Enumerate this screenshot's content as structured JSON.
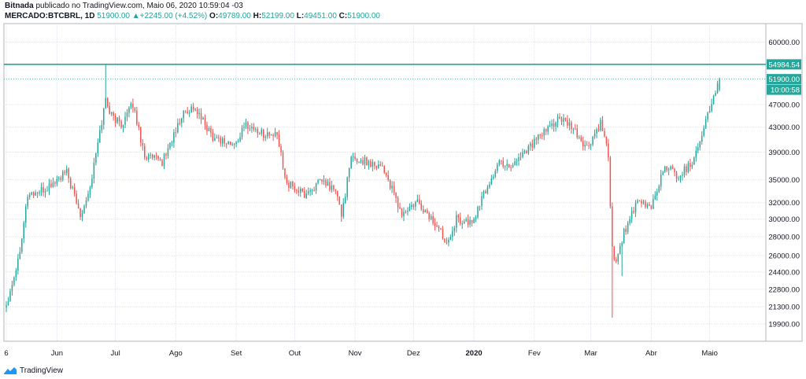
{
  "header": {
    "author": "Bitnada",
    "published": "publicado no TradingView.com, Maio 06, 2020 10:59:04 -03",
    "symbol": "MERCADO:BTCBRL, 1D",
    "last": "51900.00",
    "change_arrow": "▲",
    "change": "+2245.00 (+4.52%)",
    "o_label": "O:",
    "o_value": "49789.00",
    "h_label": "H:",
    "h_value": "52199.00",
    "l_label": "L:",
    "l_value": "49451.00",
    "c_label": "C:",
    "c_value": "51900.00"
  },
  "footer": {
    "brand": "TradingView",
    "logo_icon": "tradingview-logo-icon"
  },
  "colors": {
    "up": "#26a69a",
    "down": "#ef5350",
    "line": "#26a69a",
    "grid": "#e0e3eb",
    "text": "#131722"
  },
  "chart_data": {
    "type": "candlestick",
    "symbol": "MERCADO:BTCBRL",
    "interval": "1D",
    "x_ticks": [
      "6",
      "Jun",
      "Jul",
      "Ago",
      "Set",
      "Out",
      "Nov",
      "Dez",
      "2020",
      "Fev",
      "Mar",
      "Abr",
      "Maio"
    ],
    "y_ticks": [
      "60000.00",
      "51900.00",
      "47000.00",
      "43000.00",
      "39000.00",
      "35000.00",
      "32000.00",
      "30000.00",
      "28000.00",
      "26000.00",
      "24400.00",
      "22800.00",
      "21300.00",
      "19900.00"
    ],
    "y_range": [
      18600,
      64500
    ],
    "log_scale": true,
    "grid": true,
    "horizontal_line": {
      "value": 54984.54,
      "label": "54984.54"
    },
    "last_price": {
      "value": 51900.0,
      "label": "51900.00",
      "countdown": "10:00:58"
    },
    "anchors": [
      {
        "date": "2019-05-06",
        "close": 21500
      },
      {
        "date": "2019-05-12",
        "close": 25500
      },
      {
        "date": "2019-05-17",
        "close": 33000
      },
      {
        "date": "2019-05-25",
        "close": 33500
      },
      {
        "date": "2019-06-06",
        "close": 36000
      },
      {
        "date": "2019-06-13",
        "close": 30500
      },
      {
        "date": "2019-06-18",
        "close": 34000
      },
      {
        "date": "2019-06-26",
        "close": 48000
      },
      {
        "date": "2019-06-29",
        "close": 45000
      },
      {
        "date": "2019-07-04",
        "close": 43500
      },
      {
        "date": "2019-07-10",
        "close": 47000
      },
      {
        "date": "2019-07-16",
        "close": 38500
      },
      {
        "date": "2019-07-25",
        "close": 37500
      },
      {
        "date": "2019-08-05",
        "close": 45500
      },
      {
        "date": "2019-08-10",
        "close": 46500
      },
      {
        "date": "2019-08-20",
        "close": 41500
      },
      {
        "date": "2019-08-31",
        "close": 40000
      },
      {
        "date": "2019-09-06",
        "close": 43500
      },
      {
        "date": "2019-09-14",
        "close": 42000
      },
      {
        "date": "2019-09-22",
        "close": 41500
      },
      {
        "date": "2019-09-27",
        "close": 34500
      },
      {
        "date": "2019-10-06",
        "close": 33000
      },
      {
        "date": "2019-10-15",
        "close": 34800
      },
      {
        "date": "2019-10-22",
        "close": 33500
      },
      {
        "date": "2019-10-25",
        "close": 30500
      },
      {
        "date": "2019-10-30",
        "close": 38000
      },
      {
        "date": "2019-11-08",
        "close": 37500
      },
      {
        "date": "2019-11-15",
        "close": 37000
      },
      {
        "date": "2019-11-25",
        "close": 30500
      },
      {
        "date": "2019-12-03",
        "close": 32000
      },
      {
        "date": "2019-12-12",
        "close": 29500
      },
      {
        "date": "2019-12-18",
        "close": 27500
      },
      {
        "date": "2019-12-23",
        "close": 30000
      },
      {
        "date": "2019-12-31",
        "close": 29500
      },
      {
        "date": "2020-01-06",
        "close": 33000
      },
      {
        "date": "2020-01-14",
        "close": 37500
      },
      {
        "date": "2020-01-20",
        "close": 37000
      },
      {
        "date": "2020-01-28",
        "close": 39500
      },
      {
        "date": "2020-02-06",
        "close": 42000
      },
      {
        "date": "2020-02-13",
        "close": 44500
      },
      {
        "date": "2020-02-20",
        "close": 43000
      },
      {
        "date": "2020-02-28",
        "close": 39500
      },
      {
        "date": "2020-03-06",
        "close": 43500
      },
      {
        "date": "2020-03-10",
        "close": 38500
      },
      {
        "date": "2020-03-12",
        "close": 26500
      },
      {
        "date": "2020-03-14",
        "close": 25500
      },
      {
        "date": "2020-03-18",
        "close": 28500
      },
      {
        "date": "2020-03-25",
        "close": 32000
      },
      {
        "date": "2020-04-01",
        "close": 31500
      },
      {
        "date": "2020-04-08",
        "close": 37000
      },
      {
        "date": "2020-04-15",
        "close": 35500
      },
      {
        "date": "2020-04-22",
        "close": 37500
      },
      {
        "date": "2020-04-29",
        "close": 44000
      },
      {
        "date": "2020-05-06",
        "close": 51900
      }
    ],
    "events": [
      {
        "date": "2019-06-26",
        "high": 55000
      },
      {
        "date": "2020-03-12",
        "low": 20400
      },
      {
        "date": "2020-03-17",
        "low": 24000
      },
      {
        "date": "2020-05-06",
        "open": 49789,
        "high": 52199,
        "low": 49451,
        "close": 51900
      }
    ]
  }
}
